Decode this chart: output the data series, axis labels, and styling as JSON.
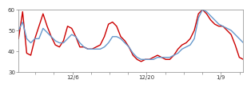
{
  "title": "",
  "ylim": [
    30,
    60
  ],
  "yticks": [
    30,
    40,
    50,
    60
  ],
  "xtick_labels": [
    "12/6",
    "12/20",
    "1/9"
  ],
  "xtick_positions": [
    0.24,
    0.57,
    0.9
  ],
  "red_line": [
    46,
    59,
    39,
    38,
    46,
    52,
    58,
    52,
    47,
    43,
    42,
    45,
    52,
    51,
    47,
    42,
    42,
    41,
    41,
    42,
    43,
    47,
    53,
    54,
    52,
    47,
    45,
    42,
    38,
    36,
    35,
    36,
    36,
    37,
    38,
    37,
    36,
    36,
    38,
    41,
    43,
    44,
    46,
    50,
    58,
    60,
    58,
    55,
    53,
    52,
    52,
    50,
    48,
    43,
    37,
    36
  ],
  "blue_line": [
    50,
    54,
    46,
    44,
    46,
    46,
    51,
    49,
    47,
    45,
    44,
    44,
    46,
    48,
    47,
    44,
    42,
    41,
    41,
    41,
    41,
    42,
    44,
    47,
    47,
    46,
    44,
    42,
    39,
    37,
    36,
    36,
    36,
    36,
    37,
    37,
    37,
    37,
    38,
    39,
    41,
    42,
    43,
    46,
    56,
    60,
    59,
    57,
    55,
    53,
    52,
    51,
    50,
    48,
    46,
    44
  ],
  "red_color": "#cc0000",
  "blue_color": "#6699cc",
  "bg_color": "#ffffff",
  "red_linewidth": 1.0,
  "blue_linewidth": 1.0
}
